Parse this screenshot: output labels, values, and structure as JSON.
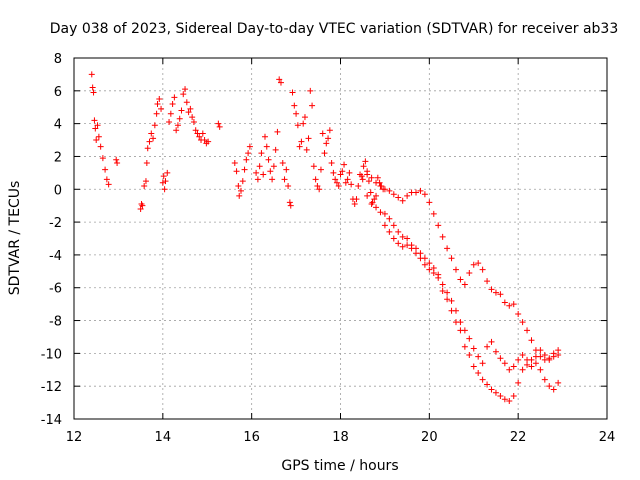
{
  "chart_data": {
    "type": "scatter",
    "title": "Day 038 of 2023, Sidereal Day-to-day VTEC variation (SDTVAR) for receiver ab33",
    "xlabel": "GPS time / hours",
    "ylabel": "SDTVAR / TECUs",
    "xlim": [
      12,
      24
    ],
    "ylim": [
      -14,
      8
    ],
    "xticks": [
      "12",
      "14",
      "16",
      "18",
      "20",
      "22",
      "24"
    ],
    "yticks": [
      "-14",
      "-12",
      "-10",
      "-8",
      "-6",
      "-4",
      "-2",
      "0",
      "2",
      "4",
      "6",
      "8"
    ],
    "grid": true,
    "marker": "+",
    "color": "#ff0000",
    "series": [
      {
        "name": "SDTVAR",
        "points": [
          [
            12.4,
            7.0
          ],
          [
            12.42,
            6.2
          ],
          [
            12.44,
            5.9
          ],
          [
            12.46,
            4.2
          ],
          [
            12.48,
            3.7
          ],
          [
            12.5,
            3.0
          ],
          [
            12.53,
            3.9
          ],
          [
            12.56,
            3.2
          ],
          [
            12.6,
            2.6
          ],
          [
            12.65,
            1.9
          ],
          [
            12.7,
            1.2
          ],
          [
            12.74,
            0.6
          ],
          [
            12.78,
            0.3
          ],
          [
            12.95,
            1.8
          ],
          [
            12.97,
            1.6
          ],
          [
            13.5,
            -1.2
          ],
          [
            13.52,
            -0.9
          ],
          [
            13.54,
            -1.0
          ],
          [
            13.58,
            0.2
          ],
          [
            13.62,
            0.5
          ],
          [
            13.64,
            1.6
          ],
          [
            13.66,
            2.5
          ],
          [
            13.7,
            2.9
          ],
          [
            13.74,
            3.4
          ],
          [
            13.78,
            3.1
          ],
          [
            13.82,
            3.9
          ],
          [
            13.86,
            4.6
          ],
          [
            13.88,
            5.2
          ],
          [
            13.92,
            5.5
          ],
          [
            13.96,
            4.9
          ],
          [
            14.0,
            0.4
          ],
          [
            14.02,
            0.8
          ],
          [
            14.04,
            0.0
          ],
          [
            14.06,
            0.5
          ],
          [
            14.1,
            1.0
          ],
          [
            14.14,
            4.1
          ],
          [
            14.18,
            4.6
          ],
          [
            14.22,
            5.2
          ],
          [
            14.26,
            5.6
          ],
          [
            14.3,
            3.6
          ],
          [
            14.34,
            3.9
          ],
          [
            14.38,
            4.3
          ],
          [
            14.42,
            4.8
          ],
          [
            14.46,
            5.8
          ],
          [
            14.5,
            6.1
          ],
          [
            14.54,
            5.3
          ],
          [
            14.58,
            4.7
          ],
          [
            14.62,
            4.9
          ],
          [
            14.66,
            4.4
          ],
          [
            14.7,
            4.1
          ],
          [
            14.74,
            3.6
          ],
          [
            14.78,
            3.4
          ],
          [
            14.82,
            3.2
          ],
          [
            14.86,
            3.0
          ],
          [
            14.9,
            3.4
          ],
          [
            14.94,
            3.0
          ],
          [
            14.98,
            2.8
          ],
          [
            15.02,
            2.9
          ],
          [
            15.25,
            4.0
          ],
          [
            15.28,
            3.8
          ],
          [
            15.62,
            1.6
          ],
          [
            15.66,
            1.1
          ],
          [
            15.7,
            0.2
          ],
          [
            15.72,
            -0.4
          ],
          [
            15.76,
            -0.1
          ],
          [
            15.8,
            0.5
          ],
          [
            15.84,
            1.2
          ],
          [
            15.88,
            1.8
          ],
          [
            15.92,
            2.2
          ],
          [
            15.96,
            2.6
          ],
          [
            16.1,
            1.0
          ],
          [
            16.14,
            0.6
          ],
          [
            16.18,
            1.4
          ],
          [
            16.22,
            2.2
          ],
          [
            16.26,
            0.9
          ],
          [
            16.3,
            3.2
          ],
          [
            16.34,
            2.6
          ],
          [
            16.38,
            1.8
          ],
          [
            16.42,
            1.1
          ],
          [
            16.46,
            0.6
          ],
          [
            16.5,
            1.4
          ],
          [
            16.54,
            2.4
          ],
          [
            16.58,
            3.5
          ],
          [
            16.62,
            6.7
          ],
          [
            16.66,
            6.5
          ],
          [
            16.7,
            1.6
          ],
          [
            16.74,
            0.6
          ],
          [
            16.78,
            1.2
          ],
          [
            16.82,
            0.2
          ],
          [
            16.86,
            -0.8
          ],
          [
            16.88,
            -1.0
          ],
          [
            16.92,
            5.9
          ],
          [
            16.96,
            5.1
          ],
          [
            17.0,
            4.6
          ],
          [
            17.04,
            3.9
          ],
          [
            17.08,
            2.6
          ],
          [
            17.12,
            2.9
          ],
          [
            17.16,
            4.0
          ],
          [
            17.2,
            4.4
          ],
          [
            17.24,
            2.4
          ],
          [
            17.28,
            3.1
          ],
          [
            17.32,
            6.0
          ],
          [
            17.36,
            5.1
          ],
          [
            17.4,
            1.4
          ],
          [
            17.44,
            0.6
          ],
          [
            17.48,
            0.2
          ],
          [
            17.52,
            0.0
          ],
          [
            17.56,
            1.2
          ],
          [
            17.6,
            3.4
          ],
          [
            17.64,
            2.2
          ],
          [
            17.68,
            2.8
          ],
          [
            17.72,
            3.1
          ],
          [
            17.76,
            3.6
          ],
          [
            17.8,
            1.6
          ],
          [
            17.84,
            1.0
          ],
          [
            17.88,
            0.6
          ],
          [
            17.92,
            0.4
          ],
          [
            17.96,
            0.2
          ],
          [
            18.0,
            0.9
          ],
          [
            18.04,
            1.1
          ],
          [
            18.08,
            1.5
          ],
          [
            18.12,
            0.4
          ],
          [
            18.16,
            0.6
          ],
          [
            18.2,
            1.0
          ],
          [
            18.24,
            0.3
          ],
          [
            18.28,
            -0.6
          ],
          [
            18.32,
            -0.9
          ],
          [
            18.36,
            -0.6
          ],
          [
            18.4,
            0.2
          ],
          [
            18.44,
            0.9
          ],
          [
            18.48,
            0.8
          ],
          [
            18.52,
            1.4
          ],
          [
            18.56,
            1.7
          ],
          [
            18.6,
            1.1
          ],
          [
            18.64,
            0.5
          ],
          [
            18.68,
            -0.2
          ],
          [
            18.72,
            -0.8
          ],
          [
            18.76,
            -0.6
          ],
          [
            18.8,
            -0.4
          ],
          [
            18.84,
            0.7
          ],
          [
            18.88,
            0.4
          ],
          [
            18.92,
            0.2
          ],
          [
            18.96,
            0.0
          ],
          [
            18.6,
            -0.4
          ],
          [
            18.7,
            -0.9
          ],
          [
            18.8,
            -1.1
          ],
          [
            18.9,
            -1.4
          ],
          [
            19.0,
            -2.2
          ],
          [
            19.1,
            -2.6
          ],
          [
            19.2,
            -3.0
          ],
          [
            19.3,
            -3.3
          ],
          [
            19.4,
            -3.5
          ],
          [
            19.5,
            -3.4
          ],
          [
            19.6,
            -3.6
          ],
          [
            19.7,
            -3.9
          ],
          [
            19.8,
            -4.2
          ],
          [
            19.9,
            -4.6
          ],
          [
            20.0,
            -4.9
          ],
          [
            20.1,
            -5.1
          ],
          [
            20.2,
            -5.4
          ],
          [
            20.3,
            -6.2
          ],
          [
            20.4,
            -6.7
          ],
          [
            20.5,
            -7.4
          ],
          [
            20.6,
            -8.1
          ],
          [
            20.7,
            -8.6
          ],
          [
            20.8,
            -9.6
          ],
          [
            20.9,
            -10.1
          ],
          [
            21.0,
            -10.8
          ],
          [
            21.1,
            -11.2
          ],
          [
            21.2,
            -11.6
          ],
          [
            21.3,
            -11.9
          ],
          [
            21.4,
            -12.2
          ],
          [
            21.5,
            -12.4
          ],
          [
            21.6,
            -12.6
          ],
          [
            21.7,
            -12.8
          ],
          [
            21.8,
            -12.9
          ],
          [
            21.9,
            -12.6
          ],
          [
            22.0,
            -11.8
          ],
          [
            22.1,
            -11.0
          ],
          [
            22.2,
            -10.7
          ],
          [
            22.3,
            -10.4
          ],
          [
            22.4,
            -10.6
          ],
          [
            22.5,
            -11.0
          ],
          [
            22.6,
            -11.6
          ],
          [
            22.7,
            -12.0
          ],
          [
            22.8,
            -12.2
          ],
          [
            22.9,
            -11.8
          ],
          [
            19.0,
            -1.5
          ],
          [
            19.1,
            -1.8
          ],
          [
            19.2,
            -2.2
          ],
          [
            19.3,
            -2.6
          ],
          [
            19.4,
            -2.9
          ],
          [
            19.5,
            -3.0
          ],
          [
            19.6,
            -3.4
          ],
          [
            19.7,
            -3.6
          ],
          [
            19.8,
            -3.9
          ],
          [
            19.9,
            -4.2
          ],
          [
            20.0,
            -4.5
          ],
          [
            20.1,
            -4.8
          ],
          [
            20.2,
            -5.2
          ],
          [
            20.3,
            -5.8
          ],
          [
            20.4,
            -6.3
          ],
          [
            20.5,
            -6.8
          ],
          [
            20.6,
            -7.4
          ],
          [
            20.7,
            -8.1
          ],
          [
            20.8,
            -8.6
          ],
          [
            20.9,
            -9.1
          ],
          [
            21.0,
            -9.7
          ],
          [
            21.1,
            -10.2
          ],
          [
            21.2,
            -10.6
          ],
          [
            21.3,
            -9.6
          ],
          [
            21.4,
            -9.3
          ],
          [
            21.5,
            -9.9
          ],
          [
            21.6,
            -10.3
          ],
          [
            21.7,
            -10.6
          ],
          [
            21.8,
            -11.0
          ],
          [
            21.9,
            -10.8
          ],
          [
            22.0,
            -10.4
          ],
          [
            22.1,
            -10.1
          ],
          [
            22.2,
            -10.4
          ],
          [
            22.3,
            -10.8
          ],
          [
            22.4,
            -10.2
          ],
          [
            22.5,
            -9.8
          ],
          [
            22.6,
            -10.1
          ],
          [
            22.7,
            -10.4
          ],
          [
            22.8,
            -10.0
          ],
          [
            22.9,
            -9.8
          ],
          [
            18.5,
            0.6
          ],
          [
            18.6,
            0.9
          ],
          [
            18.7,
            0.7
          ],
          [
            18.8,
            0.4
          ],
          [
            18.9,
            0.2
          ],
          [
            19.0,
            0.0
          ],
          [
            19.1,
            -0.1
          ],
          [
            19.2,
            -0.3
          ],
          [
            19.3,
            -0.5
          ],
          [
            19.4,
            -0.7
          ],
          [
            19.5,
            -0.4
          ],
          [
            19.6,
            -0.2
          ],
          [
            19.7,
            -0.2
          ],
          [
            19.8,
            -0.1
          ],
          [
            19.9,
            -0.3
          ],
          [
            20.0,
            -0.8
          ],
          [
            20.1,
            -1.5
          ],
          [
            20.2,
            -2.2
          ],
          [
            20.3,
            -2.9
          ],
          [
            20.4,
            -3.6
          ],
          [
            20.5,
            -4.2
          ],
          [
            20.6,
            -4.9
          ],
          [
            20.7,
            -5.5
          ],
          [
            20.8,
            -5.8
          ],
          [
            20.9,
            -5.1
          ],
          [
            21.0,
            -4.6
          ],
          [
            21.1,
            -4.5
          ],
          [
            21.2,
            -4.9
          ],
          [
            21.3,
            -5.6
          ],
          [
            21.4,
            -6.1
          ],
          [
            21.5,
            -6.3
          ],
          [
            21.6,
            -6.4
          ],
          [
            21.7,
            -6.9
          ],
          [
            21.8,
            -7.1
          ],
          [
            21.9,
            -7.0
          ],
          [
            22.0,
            -7.6
          ],
          [
            22.1,
            -8.1
          ],
          [
            22.2,
            -8.6
          ],
          [
            22.3,
            -9.2
          ],
          [
            22.4,
            -9.8
          ],
          [
            22.5,
            -10.2
          ],
          [
            22.6,
            -10.4
          ],
          [
            22.7,
            -10.3
          ],
          [
            22.8,
            -10.2
          ],
          [
            22.9,
            -10.1
          ]
        ]
      }
    ]
  }
}
